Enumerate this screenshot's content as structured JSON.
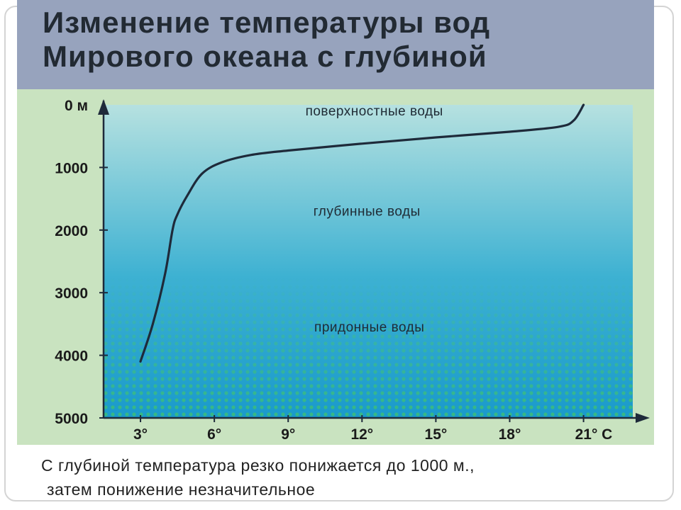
{
  "title": {
    "line1": "Изменение температуры вод",
    "line2": "Мирового океана с глубиной"
  },
  "caption": {
    "line1": "С глубиной температура резко понижается до 1000 м.,",
    "line2": "затем понижение незначительное"
  },
  "colors": {
    "title_band": "#97a3bd",
    "water_top": "#b6e1e0",
    "water_mid": "#3db1d2",
    "water_bottom": "#1a9acb",
    "dots": "#4fd24a",
    "curve": "#1e2a3a"
  },
  "chart_data": {
    "type": "line",
    "xlabel": "°C",
    "ylabel": "",
    "x_tick_labels": [
      "3°",
      "6°",
      "9°",
      "12°",
      "15°",
      "18°",
      "21° C"
    ],
    "x_ticks": [
      3,
      6,
      9,
      12,
      15,
      18,
      21
    ],
    "y_tick_labels": [
      "0 м",
      "1000",
      "2000",
      "3000",
      "4000",
      "5000"
    ],
    "y_ticks": [
      0,
      1000,
      2000,
      3000,
      4000,
      5000
    ],
    "xlim": [
      1.5,
      23
    ],
    "ylim": [
      5000,
      0
    ],
    "y_inverted": true,
    "zones": [
      {
        "label": "поверхностные воды",
        "depth": 100
      },
      {
        "label": "глубинные воды",
        "depth": 1700
      },
      {
        "label": "придонные воды",
        "depth": 3550
      }
    ],
    "series": [
      {
        "values": [
          [
            21,
            0
          ],
          [
            20.6,
            250
          ],
          [
            20,
            350
          ],
          [
            18,
            430
          ],
          [
            15,
            520
          ],
          [
            12,
            620
          ],
          [
            9,
            730
          ],
          [
            7.5,
            800
          ],
          [
            6.3,
            920
          ],
          [
            5.5,
            1100
          ],
          [
            4.9,
            1450
          ],
          [
            4.5,
            1750
          ],
          [
            4.3,
            2000
          ],
          [
            4.0,
            2700
          ],
          [
            3.5,
            3500
          ],
          [
            3.0,
            4100
          ]
        ]
      }
    ]
  }
}
